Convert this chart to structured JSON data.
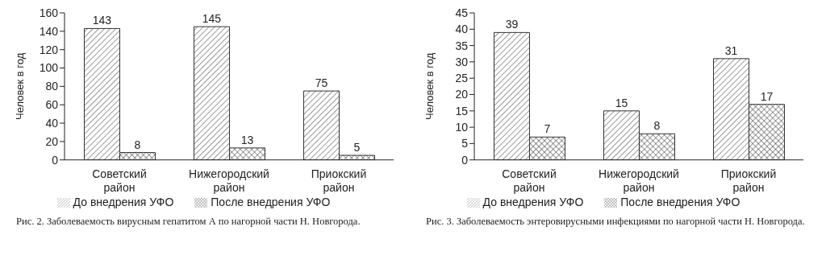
{
  "chart_data": [
    {
      "type": "bar",
      "ylabel": "Человек в год",
      "categories": [
        "Советский район",
        "Нижегородский район",
        "Приокский район"
      ],
      "series": [
        {
          "name": "До внедрения УФО",
          "color": "#333333",
          "values": [
            143,
            145,
            75
          ]
        },
        {
          "name": "После внедрения УФО",
          "color": "#333333",
          "values": [
            8,
            13,
            5
          ]
        }
      ],
      "ylim": [
        0,
        160
      ],
      "yticks": [
        0,
        20,
        40,
        60,
        80,
        100,
        120,
        140,
        160
      ],
      "data_labels": true,
      "legend": "bottom",
      "grid": false,
      "annotations": [
        "Рис. 2. Заболеваемость вирусным гепатитом А по нагорной части Н. Новгорода."
      ]
    },
    {
      "type": "bar",
      "ylabel": "Человек в год",
      "categories": [
        "Советский район",
        "Нижегородский район",
        "Приокский район"
      ],
      "series": [
        {
          "name": "До внедрения УФО",
          "color": "#333333",
          "values": [
            39,
            15,
            31
          ]
        },
        {
          "name": "После внедрения УФО",
          "color": "#333333",
          "values": [
            7,
            8,
            17
          ]
        }
      ],
      "ylim": [
        0,
        45
      ],
      "yticks": [
        0,
        5,
        10,
        15,
        20,
        25,
        30,
        35,
        40,
        45
      ],
      "data_labels": true,
      "legend": "bottom",
      "grid": false,
      "annotations": [
        "Рис. 3. Заболеваемость энтеровирусными инфекциями по нагорной части Н. Новгорода."
      ]
    }
  ]
}
